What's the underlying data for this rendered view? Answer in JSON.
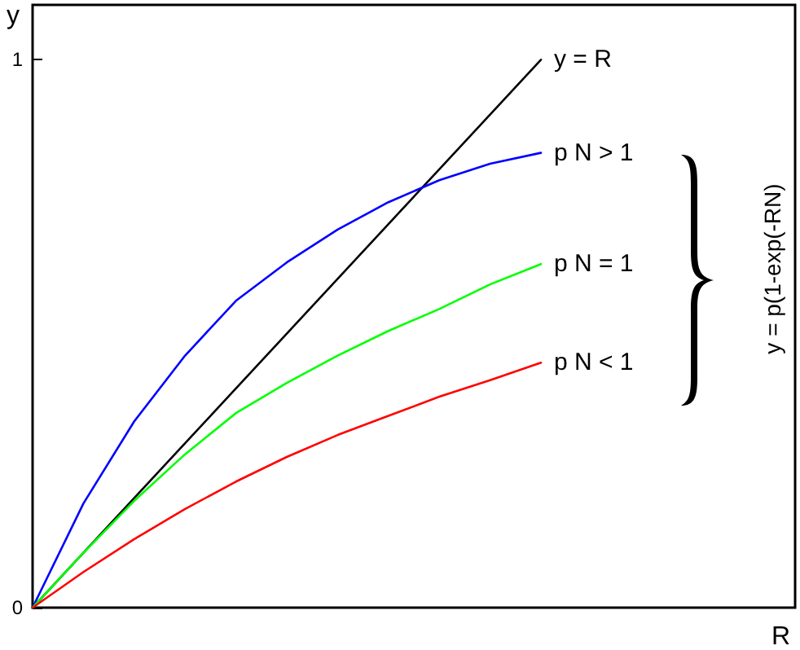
{
  "chart_data": {
    "type": "line",
    "xlabel": "R",
    "ylabel": "y",
    "categories": [
      null,
      null,
      null,
      null,
      null,
      null,
      null,
      null,
      null,
      null,
      null,
      null,
      null,
      null,
      null,
      null
    ],
    "ylim": [
      0,
      1.1
    ],
    "yticks": [
      0,
      1
    ],
    "tick_labels": "y",
    "grid": false,
    "legend": false,
    "marker": "none",
    "annotations": [
      "y = p(1-exp(-RN)"
    ],
    "series": [
      {
        "name": "y = R",
        "color": "#000000",
        "values": [
          0,
          0.1,
          0.2,
          0.3,
          0.4,
          0.5,
          0.6,
          0.7,
          0.8,
          0.9,
          1,
          null,
          null,
          null,
          null,
          null
        ]
      },
      {
        "name": "p N > 1",
        "color": "#0000ff",
        "values": [
          0,
          0.19,
          0.34,
          0.46,
          0.56,
          0.63,
          0.69,
          0.74,
          0.78,
          0.81,
          0.83,
          null,
          null,
          null,
          null,
          null
        ]
      },
      {
        "name": "p N = 1",
        "color": "#00ff00",
        "values": [
          0,
          0.1,
          0.195,
          0.28,
          0.355,
          0.41,
          0.46,
          0.505,
          0.545,
          0.59,
          0.627,
          null,
          null,
          null,
          null,
          null
        ]
      },
      {
        "name": "p N < 1",
        "color": "#ff0000",
        "values": [
          0,
          0.065,
          0.125,
          0.18,
          0.23,
          0.275,
          0.315,
          0.35,
          0.385,
          0.415,
          0.447,
          null,
          null,
          null,
          null,
          null
        ]
      }
    ]
  }
}
